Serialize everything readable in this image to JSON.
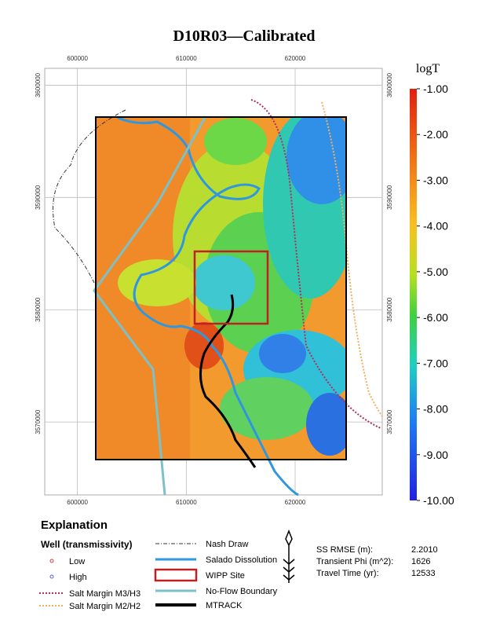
{
  "title": "D10R03—Calibrated",
  "map": {
    "xlim": [
      597000,
      628000
    ],
    "ylim": [
      3563500,
      3601500
    ],
    "xticks": [
      600000,
      610000,
      620000
    ],
    "yticks": [
      3570000,
      3580000,
      3590000,
      3600000
    ]
  },
  "colorbar": {
    "title": "logT",
    "lim": [
      -1,
      -10
    ],
    "ticks": [
      {
        "value": -1,
        "label": "-1.00"
      },
      {
        "value": -2,
        "label": "-2.00"
      },
      {
        "value": -3,
        "label": "-3.00"
      },
      {
        "value": -4,
        "label": "-4.00"
      },
      {
        "value": -5,
        "label": "-5.00"
      },
      {
        "value": -6,
        "label": "-6.00"
      },
      {
        "value": -7,
        "label": "-7.00"
      },
      {
        "value": -8,
        "label": "-8.00"
      },
      {
        "value": -9,
        "label": "-9.00"
      },
      {
        "value": -10,
        "label": "-10.00"
      }
    ]
  },
  "explanation": {
    "title": "Explanation",
    "well_title": "Well (transmissivity)",
    "low": "Low",
    "high": "High",
    "m3": "Salt Margin M3/H3",
    "m2": "Salt Margin M2/H2",
    "nash": "Nash Draw",
    "salado": "Salado Dissolution",
    "wipp": "WIPP Site",
    "noflow": "No-Flow Boundary",
    "mtrack": "MTRACK"
  },
  "stats": [
    {
      "label": "SS RMSE (m):",
      "value": "2.2010"
    },
    {
      "label": "Transient Phi (m^2):",
      "value": "1626"
    },
    {
      "label": "Travel Time (yr):",
      "value": "12533"
    }
  ]
}
